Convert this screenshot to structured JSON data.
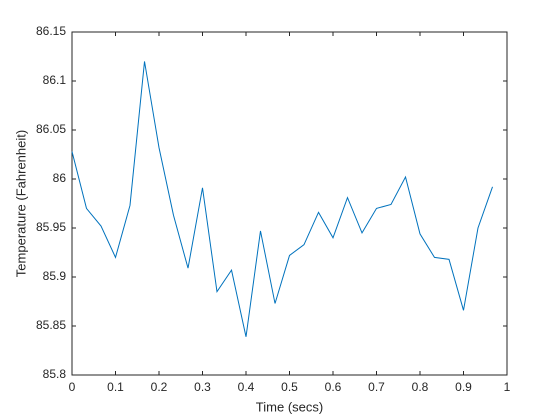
{
  "chart_data": {
    "type": "line",
    "xlabel": "Time (secs)",
    "ylabel": "Temperature (Fahrenheit)",
    "x": [
      0,
      0.0333,
      0.0667,
      0.1,
      0.1333,
      0.1667,
      0.2,
      0.2333,
      0.2667,
      0.3,
      0.3333,
      0.3667,
      0.4,
      0.4333,
      0.4667,
      0.5,
      0.5333,
      0.5667,
      0.6,
      0.6333,
      0.6667,
      0.7,
      0.7333,
      0.7667,
      0.8,
      0.8333,
      0.8667,
      0.9,
      0.9333,
      0.9667
    ],
    "series": [
      {
        "color": "#0072bd",
        "values": [
          86.028,
          85.97,
          85.952,
          85.92,
          85.973,
          86.12,
          86.032,
          85.963,
          85.909,
          85.991,
          85.885,
          85.907,
          85.839,
          85.947,
          85.873,
          85.922,
          85.933,
          85.966,
          85.94,
          85.981,
          85.945,
          85.97,
          85.974,
          86.002,
          85.944,
          85.92,
          85.918,
          85.866,
          85.95,
          85.992
        ]
      }
    ],
    "xlim": [
      0,
      1
    ],
    "xticks": [
      0,
      0.1,
      0.2,
      0.3,
      0.4,
      0.5,
      0.6,
      0.7,
      0.8,
      0.9,
      1
    ],
    "ylim": [
      85.8,
      86.15
    ],
    "yticks": [
      85.8,
      85.85,
      85.9,
      85.95,
      86,
      86.05,
      86.1,
      86.15
    ],
    "grid": false
  }
}
